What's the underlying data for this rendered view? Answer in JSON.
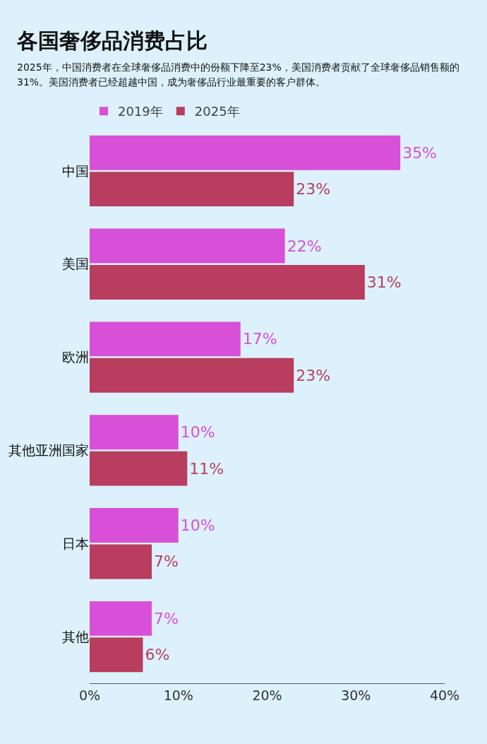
{
  "chart_data": {
    "type": "bar",
    "orientation": "horizontal",
    "title": "各国奢侈品消费占比",
    "subtitle": "2025年，中国消费者在全球奢侈品消费中的份额下降至23%，美国消费者贡献了全球奢侈品销售额的31%。美国消费者已经超越中国，成为奢侈品行业最重要的客户群体。",
    "categories": [
      "中国",
      "美国",
      "欧洲",
      "其他亚洲国家",
      "日本",
      "其他"
    ],
    "series": [
      {
        "name": "2019年",
        "color": "#d84fd8",
        "values": [
          35,
          22,
          17,
          10,
          10,
          7
        ],
        "value_labels": [
          "35%",
          "22%",
          "17%",
          "10%",
          "10%",
          "7%"
        ]
      },
      {
        "name": "2025年",
        "color": "#b83d5e",
        "values": [
          23,
          31,
          23,
          11,
          7,
          6
        ],
        "value_labels": [
          "23%",
          "31%",
          "23%",
          "11%",
          "7%",
          "6%"
        ]
      }
    ],
    "xlim": [
      0,
      40
    ],
    "xticks": [
      {
        "value": 0,
        "label": "0%"
      },
      {
        "value": 10,
        "label": "10%"
      },
      {
        "value": 20,
        "label": "20%"
      },
      {
        "value": 30,
        "label": "30%"
      },
      {
        "value": 40,
        "label": "40%"
      }
    ],
    "grid": false,
    "legend": "top left"
  }
}
